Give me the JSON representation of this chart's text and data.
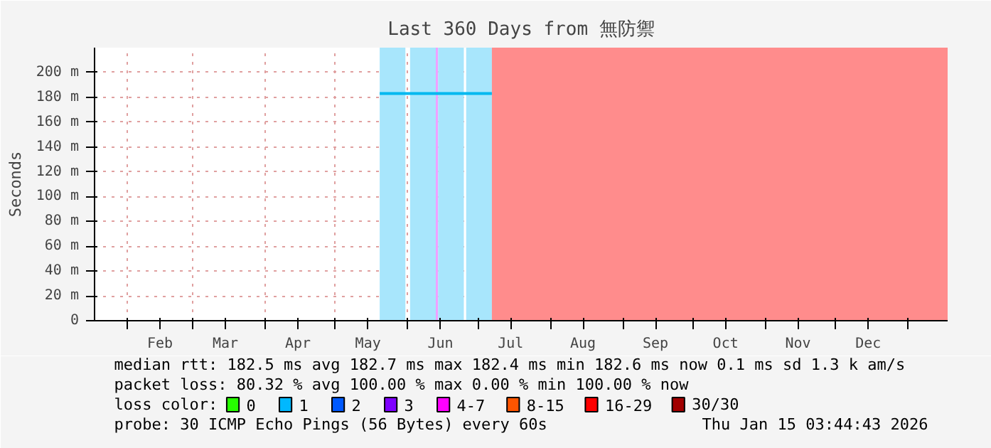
{
  "chart_data": {
    "type": "line",
    "title": "Last 360 Days from 無防禦",
    "ylabel": "Seconds",
    "legend_title": "loss color:",
    "xlim": [
      "2025-01-18",
      "2026-01-18"
    ],
    "xticks": [
      {
        "value": "2025-02-01",
        "label": null
      },
      {
        "value": "2025-02-15",
        "label": "Feb"
      },
      {
        "value": "2025-03-01",
        "label": null
      },
      {
        "value": "2025-03-15",
        "label": "Mar"
      },
      {
        "value": "2025-04-01",
        "label": null
      },
      {
        "value": "2025-04-15",
        "label": "Apr"
      },
      {
        "value": "2025-05-01",
        "label": null
      },
      {
        "value": "2025-05-15",
        "label": "May"
      },
      {
        "value": "2025-06-01",
        "label": null
      },
      {
        "value": "2025-06-15",
        "label": "Jun"
      },
      {
        "value": "2025-07-01",
        "label": null
      },
      {
        "value": "2025-07-15",
        "label": "Jul"
      },
      {
        "value": "2025-08-01",
        "label": null
      },
      {
        "value": "2025-08-15",
        "label": "Aug"
      },
      {
        "value": "2025-09-01",
        "label": null
      },
      {
        "value": "2025-09-15",
        "label": "Sep"
      },
      {
        "value": "2025-10-01",
        "label": null
      },
      {
        "value": "2025-10-15",
        "label": "Oct"
      },
      {
        "value": "2025-11-01",
        "label": null
      },
      {
        "value": "2025-11-15",
        "label": "Nov"
      },
      {
        "value": "2025-12-01",
        "label": null
      },
      {
        "value": "2025-12-15",
        "label": "Dec"
      },
      {
        "value": "2026-01-01",
        "label": null
      }
    ],
    "ylim": [
      0,
      220
    ],
    "yticks": [
      0,
      {
        "value": 20,
        "label": "20 m"
      },
      {
        "value": 40,
        "label": "40 m"
      },
      {
        "value": 60,
        "label": "60 m"
      },
      {
        "value": 80,
        "label": "80 m"
      },
      {
        "value": 100,
        "label": "100 m"
      },
      {
        "value": 120,
        "label": "120 m"
      },
      {
        "value": 140,
        "label": "140 m"
      },
      {
        "value": 160,
        "label": "160 m"
      },
      {
        "value": 180,
        "label": "180 m"
      },
      {
        "value": 200,
        "label": "200 m"
      }
    ],
    "grid": true,
    "legend": "bottom",
    "series": [
      {
        "color": "#00b8f0",
        "x": [
          "2025-05-20",
          "2025-06-01",
          "2025-06-13",
          "2025-06-25",
          "2025-07-07"
        ],
        "values": [
          183,
          183,
          183,
          183,
          183
        ]
      },
      {
        "name": "0",
        "color": "#26ff00"
      },
      {
        "name": "1",
        "color": "#00b8ff"
      },
      {
        "name": "2",
        "color": "#0059ff"
      },
      {
        "name": "3",
        "color": "#7e00ff"
      },
      {
        "name": "4-7",
        "color": "#ff00ff"
      },
      {
        "name": "8-15",
        "color": "#ff5500"
      },
      {
        "name": "16-29",
        "color": "#ff0000"
      },
      {
        "name": "30/30",
        "color": "#a10000"
      }
    ],
    "bands": [
      {
        "axis": "x",
        "from": "2025-05-20",
        "to": "2025-05-31",
        "color": "#a8e6fc"
      },
      {
        "axis": "x",
        "from": "2025-06-02",
        "to": "2025-06-13",
        "color": "#a8e6fc"
      },
      {
        "axis": "x",
        "from": "2025-06-13",
        "to": "2025-06-14",
        "color": "#f0a0ff"
      },
      {
        "axis": "x",
        "from": "2025-06-14",
        "to": "2025-06-25",
        "color": "#a8e6fc"
      },
      {
        "axis": "x",
        "from": "2025-06-26",
        "to": "2025-07-07",
        "color": "#a8e6fc"
      },
      {
        "axis": "x",
        "from": "2025-07-07",
        "to": "2026-01-18",
        "color": "#ff8c8c"
      }
    ],
    "annotations": [
      "median rtt:  182.5 ms avg  182.7 ms max  182.4 ms min  182.6 ms now  0.1 ms sd  1.3 k am/s",
      "packet loss: 80.32 % avg  100.00 % max  0.00 % min  100.00 % now",
      "probe:       30 ICMP Echo Pings (56 Bytes) every 60s",
      "Thu Jan 15 03:44:43 2026"
    ]
  }
}
